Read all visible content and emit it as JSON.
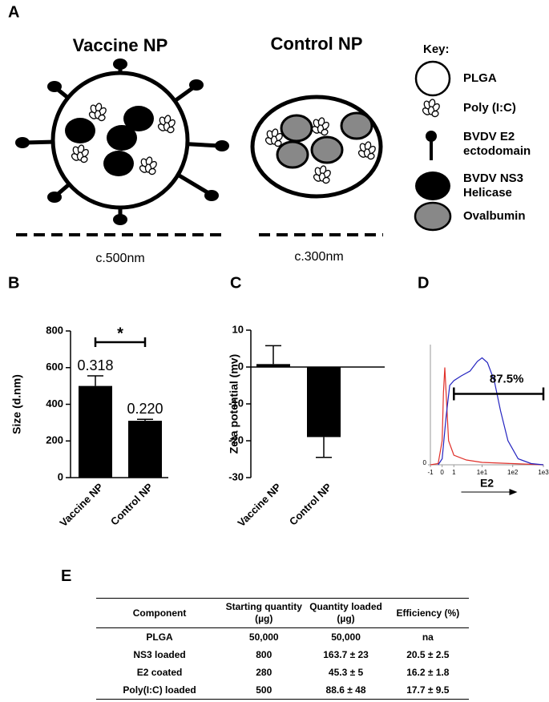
{
  "panel_a": {
    "letter": "A",
    "vaccine_title": "Vaccine NP",
    "control_title": "Control NP",
    "vaccine_size": "c.500nm",
    "control_size": "c.300nm",
    "key_title": "Key:",
    "key": [
      "PLGA",
      "Poly (I:C)",
      "BVDV E2 ectodomain",
      "BVDV NS3 Helicase",
      "Ovalbumin"
    ]
  },
  "chart_data": [
    {
      "type": "bar",
      "panel": "B",
      "ylabel": "Size (d.nm)",
      "categories": [
        "Vaccine NP",
        "Control NP"
      ],
      "values": [
        500,
        310
      ],
      "errors": [
        55,
        8
      ],
      "annotations": [
        "0.318",
        "0.220"
      ],
      "significance": "*",
      "color": "#000000",
      "ylim": [
        0,
        800
      ],
      "yticks": [
        0,
        200,
        400,
        600,
        800
      ]
    },
    {
      "type": "bar",
      "panel": "C",
      "ylabel": "Zeta potential (mv)",
      "categories": [
        "Vaccine NP",
        "Control NP"
      ],
      "values": [
        0.8,
        -19
      ],
      "errors": [
        5,
        5.5
      ],
      "color": "#000000",
      "ylim": [
        -30,
        10
      ],
      "yticks": [
        -30,
        -20,
        -10,
        0,
        10
      ]
    },
    {
      "type": "line",
      "panel": "D",
      "xlabel": "E2",
      "xscale": "asinh",
      "xlim": [
        -1,
        1000
      ],
      "xticks": [
        -1,
        0,
        1,
        {
          "value": 10,
          "label": "1e1"
        },
        {
          "value": 100,
          "label": "1e2"
        },
        {
          "value": 1000,
          "label": "1e3"
        }
      ],
      "ylim": [
        0,
        100
      ],
      "yticks": [
        0
      ],
      "series": [
        {
          "color": "#e0302a",
          "x": [
            -1,
            -0.3,
            0,
            0.1,
            0.2,
            0.3,
            0.5,
            1,
            3,
            10,
            100,
            1000
          ],
          "values": [
            0,
            1,
            20,
            60,
            81,
            60,
            20,
            8,
            4,
            2,
            1,
            0
          ]
        },
        {
          "color": "#2424c0",
          "x": [
            -0.3,
            0,
            0.3,
            0.6,
            1,
            2,
            4,
            7,
            10,
            15,
            25,
            40,
            70,
            150,
            400,
            1000
          ],
          "values": [
            0,
            5,
            40,
            66,
            70,
            74,
            78,
            86,
            89,
            85,
            70,
            45,
            20,
            5,
            1,
            0
          ]
        }
      ],
      "gate": {
        "x": [
          1,
          1000
        ],
        "y": 59,
        "label": "87.5%"
      }
    }
  ],
  "table": {
    "letter": "E",
    "header": [
      "Component",
      "Starting quantity (µg)",
      "Quantity loaded (µg)",
      "Efficiency (%)"
    ],
    "rows": [
      [
        "PLGA",
        "50,000",
        "50,000",
        "na"
      ],
      [
        "NS3 loaded",
        "800",
        "163.7 ± 23",
        "20.5 ± 2.5"
      ],
      [
        "E2 coated",
        "280",
        "45.3 ± 5",
        "16.2 ± 1.8"
      ],
      [
        "Poly(I:C) loaded",
        "500",
        "88.6 ± 48",
        "17.7 ± 9.5"
      ]
    ]
  }
}
